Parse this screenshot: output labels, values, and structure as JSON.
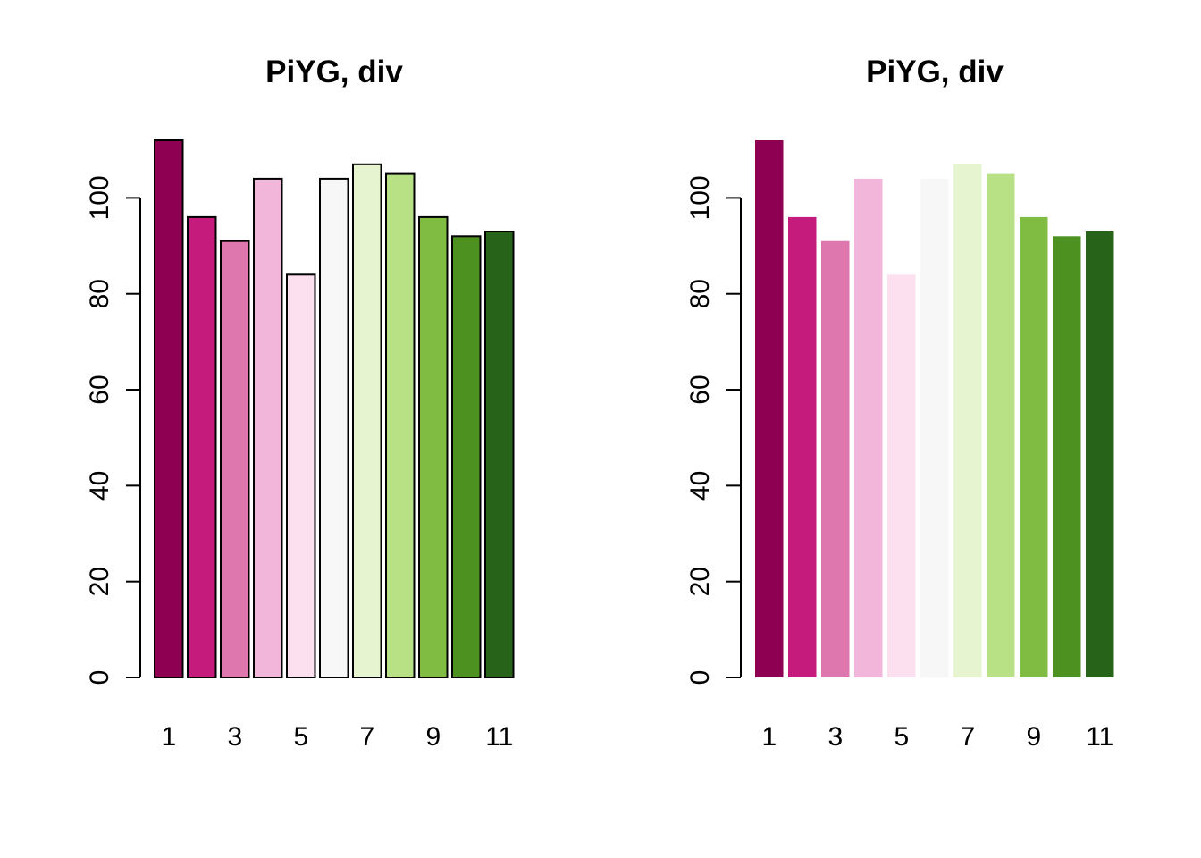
{
  "chart_data": [
    {
      "type": "bar",
      "title": "PiYG, div",
      "categories": [
        "1",
        "2",
        "3",
        "4",
        "5",
        "6",
        "7",
        "8",
        "9",
        "10",
        "11"
      ],
      "x_tick_labels": [
        "1",
        "3",
        "5",
        "7",
        "9",
        "11"
      ],
      "values": [
        112,
        96,
        91,
        104,
        84,
        104,
        107,
        105,
        96,
        92,
        93
      ],
      "colors": [
        "#8E0152",
        "#C51B7D",
        "#DE77AE",
        "#F1B6DA",
        "#FDE0EF",
        "#F7F7F7",
        "#E6F5D0",
        "#B8E186",
        "#7FBC41",
        "#4D9221",
        "#276419"
      ],
      "ylim": [
        0,
        112
      ],
      "y_ticks": [
        "0",
        "20",
        "40",
        "60",
        "80",
        "100"
      ],
      "bar_borders": true,
      "xlabel": "",
      "ylabel": ""
    },
    {
      "type": "bar",
      "title": "PiYG, div",
      "categories": [
        "1",
        "2",
        "3",
        "4",
        "5",
        "6",
        "7",
        "8",
        "9",
        "10",
        "11"
      ],
      "x_tick_labels": [
        "1",
        "3",
        "5",
        "7",
        "9",
        "11"
      ],
      "values": [
        112,
        96,
        91,
        104,
        84,
        104,
        107,
        105,
        96,
        92,
        93
      ],
      "colors": [
        "#8E0152",
        "#C51B7D",
        "#DE77AE",
        "#F1B6DA",
        "#FDE0EF",
        "#F7F7F7",
        "#E6F5D0",
        "#B8E186",
        "#7FBC41",
        "#4D9221",
        "#276419"
      ],
      "ylim": [
        0,
        112
      ],
      "y_ticks": [
        "0",
        "20",
        "40",
        "60",
        "80",
        "100"
      ],
      "bar_borders": false,
      "xlabel": "",
      "ylabel": ""
    }
  ]
}
